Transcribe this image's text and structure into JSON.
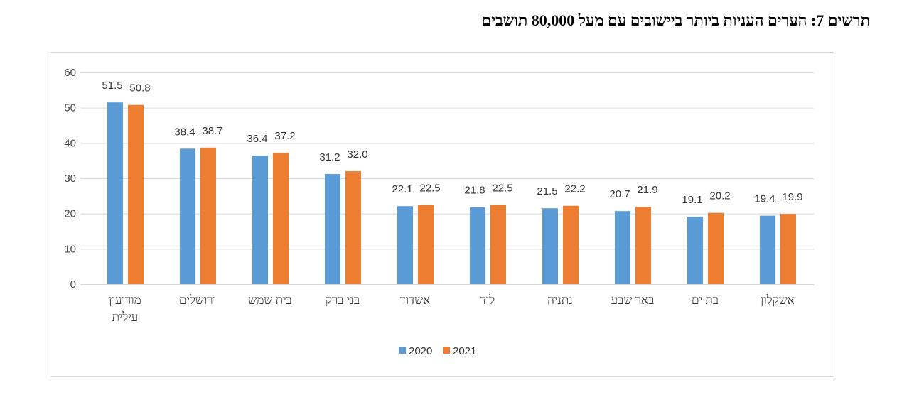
{
  "chart_data": {
    "type": "bar",
    "title": "תרשים 7: הערים העניות ביותר ביישובים עם מעל 80,000 תושבים",
    "categories": [
      [
        "מודיעין",
        "עילית"
      ],
      [
        "ירושלים"
      ],
      [
        "בית שמש"
      ],
      [
        "בני ברק"
      ],
      [
        "אשדוד"
      ],
      [
        "לוד"
      ],
      [
        "נתניה"
      ],
      [
        "באר שבע"
      ],
      [
        "בת ים"
      ],
      [
        "אשקלון"
      ]
    ],
    "series": [
      {
        "name": "2020",
        "color": "#5B9BD5",
        "values": [
          51.5,
          38.4,
          36.4,
          31.2,
          22.1,
          21.8,
          21.5,
          20.7,
          19.1,
          19.4
        ]
      },
      {
        "name": "2021",
        "color": "#ED7D31",
        "values": [
          50.8,
          38.7,
          37.2,
          32.0,
          22.5,
          22.5,
          22.2,
          21.9,
          20.2,
          19.9
        ]
      }
    ],
    "ylim": [
      0,
      60
    ],
    "yticks": [
      0,
      10,
      20,
      30,
      40,
      50,
      60
    ],
    "grid": true,
    "legend": "bottom",
    "xlabel": "",
    "ylabel": ""
  }
}
